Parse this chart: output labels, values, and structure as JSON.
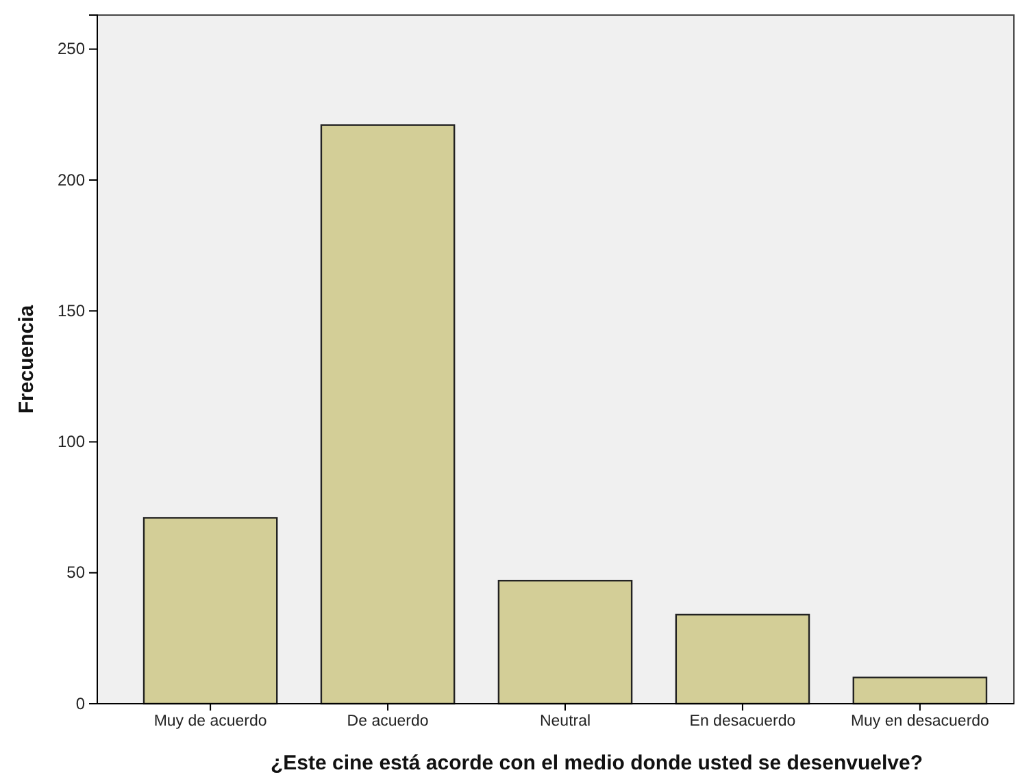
{
  "chart_data": {
    "type": "bar",
    "xlabel": "¿Este cine está acorde con el medio donde usted se desenvuelve?",
    "ylabel": "Frecuencia",
    "categories": [
      "Muy de acuerdo",
      "De acuerdo",
      "Neutral",
      "En desacuerdo",
      "Muy en desacuerdo"
    ],
    "values": [
      71,
      221,
      47,
      34,
      10
    ],
    "color": "#d3ce97",
    "ylim": [
      0,
      263
    ],
    "yticks": [
      0,
      50,
      100,
      150,
      200,
      250
    ],
    "grid": false
  }
}
